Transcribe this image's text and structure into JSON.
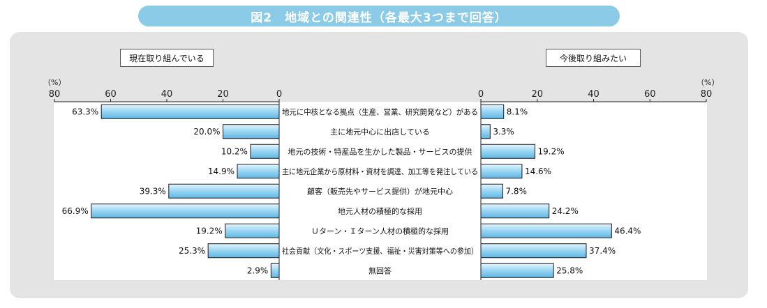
{
  "title": "図2　地域との関連性（各最大3つまで回答）",
  "left_header": "現在取り組んでいる",
  "right_header": "今後取り組みたい",
  "unit_left": "（%）",
  "unit_right": "（%）",
  "colors": {
    "bar_fill_top": "#e6f5fd",
    "bar_fill_mid": "#9fd8f4",
    "bar_fill_bottom": "#5fb6e3",
    "bar_stroke": "#1a1a1a",
    "banner": "#8ccbe8",
    "panel": "#e4e4e4"
  },
  "chart_data": {
    "type": "bar",
    "orientation": "horizontal-butterfly",
    "grid": false,
    "xlim": [
      0,
      80
    ],
    "ticks": [
      "80",
      "60",
      "40",
      "20",
      "0",
      "0",
      "20",
      "40",
      "60",
      "80"
    ],
    "categories": [
      "地元に中核となる拠点（生産、営業、研究開発など）がある",
      "主に地元中心に出店している",
      "地元の技術・特産品を生かした製品・サービスの提供",
      "主に地元企業から原材料・資材を調達、加工等を発注している",
      "顧客（販売先やサービス提供）が地元中心",
      "地元人材の積極的な採用",
      "Ｕターン・Ｉターン人材の積極的な採用",
      "社会貢献（文化・スポーツ支援、福祉・災害対策等への参加）",
      "無回答"
    ],
    "series": [
      {
        "name": "現在取り組んでいる",
        "values": [
          63.3,
          20.0,
          10.2,
          14.9,
          39.3,
          66.9,
          19.2,
          25.3,
          2.9
        ],
        "labels": [
          "63.3%",
          "20.0%",
          "10.2%",
          "14.9%",
          "39.3%",
          "66.9%",
          "19.2%",
          "25.3%",
          "2.9%"
        ]
      },
      {
        "name": "今後取り組みたい",
        "values": [
          8.1,
          3.3,
          19.2,
          14.6,
          7.8,
          24.2,
          46.4,
          37.4,
          25.8
        ],
        "labels": [
          "8.1%",
          "3.3%",
          "19.2%",
          "14.6%",
          "7.8%",
          "24.2%",
          "46.4%",
          "37.4%",
          "25.8%"
        ]
      }
    ]
  }
}
